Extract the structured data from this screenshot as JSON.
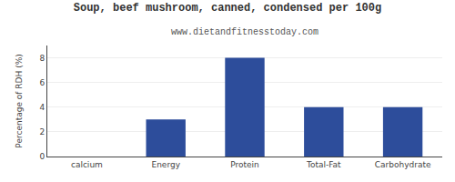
{
  "chart_data": {
    "type": "bar",
    "title": "Soup, beef mushroom, canned, condensed per 100g",
    "subtitle": "www.dietandfitnesstoday.com",
    "categories": [
      "calcium",
      "Energy",
      "Protein",
      "Total-Fat",
      "Carbohydrate"
    ],
    "values": [
      0,
      3,
      8,
      4,
      4
    ],
    "color": "#2d4d9b",
    "ylabel": "Percentage of RDH (%)",
    "ylim": [
      0,
      9
    ],
    "yticks": [
      0,
      2,
      4,
      6,
      8
    ],
    "grid": true
  }
}
